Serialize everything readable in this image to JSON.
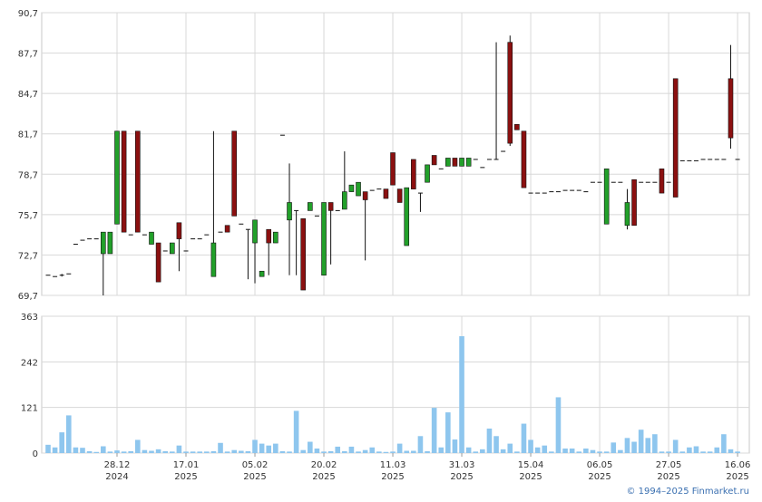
{
  "chart_data": [
    {
      "type": "candlestick",
      "xlim": [
        -0.92,
        101.7
      ],
      "ylim": [
        69.7,
        90.7
      ],
      "yticks": [
        {
          "value": 69.7,
          "label": "69,7"
        },
        {
          "value": 72.7,
          "label": "72,7"
        },
        {
          "value": 75.7,
          "label": "75,7"
        },
        {
          "value": 78.7,
          "label": "78,7"
        },
        {
          "value": 81.7,
          "label": "81,7"
        },
        {
          "value": 84.7,
          "label": "84,7"
        },
        {
          "value": 87.7,
          "label": "87,7"
        },
        {
          "value": 90.7,
          "label": "90,7"
        }
      ],
      "grid": true,
      "up_color": "#22a02a",
      "down_color": "#8b1010",
      "open": [
        71.2,
        71.1,
        71.2,
        71.3,
        73.5,
        73.8,
        73.9,
        73.9,
        72.8,
        72.8,
        75.0,
        81.9,
        74.2,
        81.9,
        74.2,
        73.5,
        73.6,
        73.0,
        72.8,
        75.1,
        73.0,
        73.9,
        73.9,
        74.2,
        71.1,
        74.4,
        74.9,
        81.9,
        75.0,
        74.6,
        73.6,
        71.1,
        74.6,
        73.6,
        81.6,
        75.3,
        76.0,
        75.4,
        76.0,
        75.6,
        71.2,
        76.6,
        76.0,
        76.1,
        77.4,
        77.1,
        77.4,
        77.5,
        77.6,
        77.6,
        80.3,
        77.6,
        73.4,
        79.8,
        77.3,
        78.1,
        80.1,
        79.1,
        79.3,
        79.9,
        79.3,
        79.3,
        79.8,
        79.2,
        79.8,
        79.8,
        80.4,
        88.5,
        82.4,
        81.9,
        77.3,
        77.3,
        77.3,
        77.4,
        77.4,
        77.5,
        77.5,
        77.5,
        77.4,
        78.1,
        78.1,
        75.0,
        78.1,
        78.1,
        74.9,
        78.3,
        78.1,
        78.1,
        78.1,
        79.1,
        78.1,
        85.8,
        79.7,
        79.7,
        79.7,
        79.8,
        79.8,
        79.8,
        79.8,
        85.8,
        79.8
      ],
      "high": [
        71.2,
        71.1,
        71.3,
        71.3,
        73.5,
        73.8,
        73.9,
        73.9,
        74.4,
        74.4,
        81.9,
        81.9,
        74.2,
        81.9,
        74.2,
        74.4,
        73.6,
        73.0,
        73.6,
        75.1,
        73.0,
        73.9,
        73.9,
        74.2,
        81.9,
        74.4,
        74.9,
        81.9,
        75.0,
        74.6,
        75.3,
        71.5,
        74.6,
        74.4,
        81.6,
        79.5,
        76.0,
        75.4,
        76.6,
        75.6,
        76.6,
        76.6,
        76.0,
        80.4,
        77.9,
        78.1,
        77.4,
        77.5,
        77.6,
        77.6,
        80.3,
        77.6,
        77.7,
        79.8,
        77.3,
        79.4,
        80.1,
        79.1,
        79.9,
        79.9,
        79.9,
        79.9,
        79.8,
        79.2,
        79.8,
        88.5,
        80.4,
        89.0,
        82.4,
        81.9,
        77.3,
        77.3,
        77.3,
        77.4,
        77.4,
        77.5,
        77.5,
        77.5,
        77.4,
        78.1,
        78.1,
        79.1,
        78.1,
        78.1,
        77.6,
        78.3,
        78.1,
        78.1,
        78.1,
        79.1,
        78.1,
        85.8,
        79.7,
        79.7,
        79.7,
        79.8,
        79.8,
        79.8,
        79.8,
        88.3,
        79.8
      ],
      "low": [
        71.2,
        71.1,
        71.1,
        71.3,
        73.5,
        73.8,
        73.9,
        73.9,
        69.7,
        72.8,
        75.0,
        74.4,
        74.2,
        74.4,
        74.2,
        73.5,
        70.7,
        73.0,
        72.8,
        71.5,
        73.0,
        73.9,
        73.9,
        74.2,
        71.1,
        74.4,
        74.4,
        75.6,
        75.0,
        70.9,
        70.6,
        71.1,
        71.2,
        73.6,
        81.6,
        71.2,
        71.2,
        70.1,
        76.0,
        75.6,
        71.2,
        72.0,
        76.0,
        76.1,
        77.4,
        77.1,
        72.3,
        77.5,
        77.6,
        76.9,
        77.9,
        76.6,
        73.4,
        77.6,
        75.9,
        78.1,
        79.4,
        79.1,
        79.3,
        79.3,
        79.3,
        79.3,
        79.8,
        79.2,
        79.8,
        79.8,
        80.4,
        80.8,
        82.0,
        77.7,
        77.3,
        77.3,
        77.3,
        77.4,
        77.4,
        77.5,
        77.5,
        77.5,
        77.4,
        78.1,
        78.1,
        75.0,
        78.1,
        78.1,
        74.6,
        74.9,
        78.1,
        78.1,
        78.1,
        77.3,
        78.1,
        77.0,
        79.7,
        79.7,
        79.7,
        79.8,
        79.8,
        79.8,
        79.8,
        80.6,
        79.8
      ],
      "close": [
        71.2,
        71.1,
        71.3,
        71.3,
        73.5,
        73.8,
        73.9,
        73.9,
        74.4,
        74.4,
        81.9,
        74.4,
        74.2,
        74.4,
        74.2,
        74.4,
        70.7,
        73.0,
        73.6,
        73.9,
        73.0,
        73.9,
        73.9,
        74.2,
        73.6,
        74.4,
        74.4,
        75.6,
        75.0,
        74.6,
        75.3,
        71.5,
        73.6,
        74.4,
        81.6,
        76.6,
        76.0,
        70.1,
        76.6,
        75.6,
        76.6,
        76.0,
        76.0,
        77.4,
        77.9,
        78.1,
        76.8,
        77.5,
        77.6,
        76.9,
        77.9,
        76.6,
        77.7,
        77.6,
        77.3,
        79.4,
        79.4,
        79.1,
        79.9,
        79.3,
        79.9,
        79.9,
        79.8,
        79.2,
        79.8,
        79.8,
        80.4,
        81.0,
        82.0,
        77.7,
        77.3,
        77.3,
        77.3,
        77.4,
        77.4,
        77.5,
        77.5,
        77.5,
        77.4,
        78.1,
        78.1,
        79.1,
        78.1,
        78.1,
        76.6,
        74.9,
        78.1,
        78.1,
        78.1,
        77.3,
        78.1,
        77.0,
        79.7,
        79.7,
        79.7,
        79.8,
        79.8,
        79.8,
        79.8,
        81.4,
        79.8
      ]
    },
    {
      "type": "bar",
      "xlim": [
        -0.92,
        101.7
      ],
      "ylim": [
        0,
        363
      ],
      "yticks": [
        0,
        121,
        242,
        363
      ],
      "grid": true,
      "color": "#8ec6ee",
      "xticks": [
        {
          "value": 10,
          "label": "28.12",
          "sublabel": "2024"
        },
        {
          "value": 20,
          "label": "17.01",
          "sublabel": "2025"
        },
        {
          "value": 30,
          "label": "05.02",
          "sublabel": "2025"
        },
        {
          "value": 40,
          "label": "20.02",
          "sublabel": "2025"
        },
        {
          "value": 50,
          "label": "11.03",
          "sublabel": "2025"
        },
        {
          "value": 60,
          "label": "31.03",
          "sublabel": "2025"
        },
        {
          "value": 70,
          "label": "15.04",
          "sublabel": "2025"
        },
        {
          "value": 80,
          "label": "06.05",
          "sublabel": "2025"
        },
        {
          "value": 90,
          "label": "27.05",
          "sublabel": "2025"
        },
        {
          "value": 100,
          "label": "16.06",
          "sublabel": "2025"
        }
      ],
      "values": [
        22,
        15,
        55,
        100,
        15,
        14,
        5,
        3,
        18,
        4,
        7,
        4,
        5,
        35,
        8,
        6,
        10,
        5,
        4,
        20,
        4,
        4,
        4,
        4,
        5,
        27,
        4,
        8,
        6,
        5,
        35,
        25,
        20,
        25,
        5,
        4,
        112,
        8,
        30,
        12,
        4,
        5,
        17,
        5,
        17,
        4,
        8,
        15,
        4,
        3,
        4,
        25,
        6,
        6,
        45,
        5,
        120,
        15,
        108,
        36,
        310,
        15,
        4,
        10,
        65,
        45,
        10,
        25,
        4,
        78,
        35,
        15,
        20,
        4,
        148,
        12,
        12,
        4,
        12,
        8,
        4,
        4,
        28,
        8,
        40,
        30,
        62,
        40,
        50,
        4,
        4,
        35,
        4,
        15,
        18,
        4,
        4,
        15,
        50,
        10,
        4
      ]
    }
  ],
  "credit": "© 1994–2025 Finmarket.ru"
}
